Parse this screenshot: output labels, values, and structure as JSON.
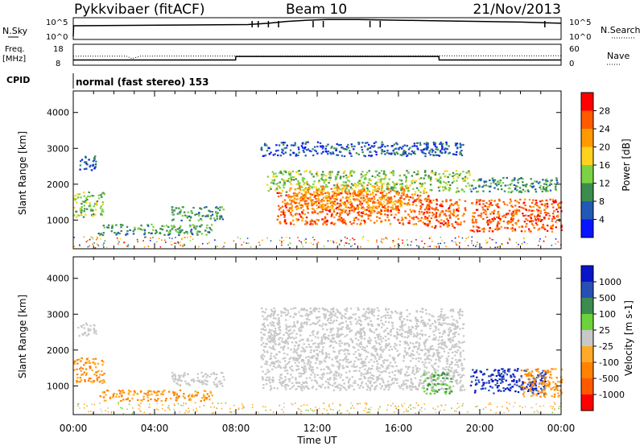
{
  "header": {
    "station": "Pykkvibaer (fitACF)",
    "beam": "Beam 10",
    "date": "21/Nov/2013"
  },
  "labels": {
    "nsky": "N.Sky",
    "nsearch": "N.Search",
    "freq": "Freq.",
    "mhz": "[MHz]",
    "nave": "Nave",
    "cpid": "CPID",
    "mode": "normal (fast stereo) 153",
    "time_axis": "Time UT"
  },
  "chart_data": [
    {
      "type": "line",
      "title": "N.Sky / N.Search",
      "ylabel_left": "N.Sky",
      "ylabel_right": "N.Search",
      "yticks_left": [
        "10^5",
        "10^0"
      ],
      "yticks_right": [
        "10^5",
        "10^0"
      ],
      "series": [
        {
          "name": "N.Sky",
          "style": "solid",
          "x": [
            0,
            0.02,
            8.6,
            9.6,
            10.5,
            11.5,
            12.5,
            14,
            16,
            18,
            20,
            22,
            24
          ],
          "y": [
            0.5,
            2.2,
            2.4,
            2.6,
            2.9,
            3.1,
            3.2,
            3.2,
            3.1,
            3.0,
            2.9,
            2.8,
            2.6
          ]
        },
        {
          "name": "N.Search",
          "style": "dotted",
          "x": [],
          "y": []
        }
      ],
      "spikes_x": [
        8.8,
        9.1,
        9.6,
        10.1,
        11.8,
        12.3,
        14.6,
        15.1,
        23.2
      ]
    },
    {
      "type": "line",
      "title": "Freq. [MHz] / Nave",
      "ylabel_left": "Freq. [MHz]",
      "ylabel_right": "Nave",
      "yticks_left": [
        "18",
        "8"
      ],
      "yticks_right": [
        "60",
        "0"
      ],
      "series": [
        {
          "name": "Freq.",
          "style": "solid",
          "units": "MHz",
          "x": [
            0,
            7.99,
            8.0,
            17.99,
            18.0,
            24
          ],
          "y": [
            10.5,
            10.5,
            12.2,
            12.2,
            10.5,
            10.5
          ]
        },
        {
          "name": "Nave",
          "style": "dotted",
          "x": [
            0,
            2.6,
            2.9,
            3.3,
            24
          ],
          "y": [
            26,
            26,
            19,
            26,
            27
          ]
        }
      ]
    },
    {
      "type": "heatmap",
      "title": "Power [dB]",
      "ylabel": "Slant Range [km]",
      "ylim": [
        200,
        4600
      ],
      "yticks": [
        1000,
        2000,
        3000,
        4000
      ],
      "xlim": [
        0,
        24
      ],
      "xticks": [
        "00:00",
        "04:00",
        "08:00",
        "12:00",
        "16:00",
        "20:00",
        "00:00"
      ],
      "colorbar": {
        "label": "Power [dB]",
        "ticks": [
          "28",
          "24",
          "20",
          "16",
          "12",
          "8",
          "4"
        ],
        "colors": [
          "#ff0000",
          "#ff5a00",
          "#ff9a00",
          "#ffd21e",
          "#7cd242",
          "#3c8c50",
          "#205ab4",
          "#0a14ff"
        ]
      },
      "blobs": [
        {
          "x": [
            0.0,
            1.5
          ],
          "r": [
            1100,
            1800
          ],
          "level": 4
        },
        {
          "x": [
            0.2,
            1.1
          ],
          "r": [
            2400,
            2800
          ],
          "level": 6
        },
        {
          "x": [
            1.2,
            6.8
          ],
          "r": [
            600,
            900
          ],
          "level": 5
        },
        {
          "x": [
            4.8,
            7.4
          ],
          "r": [
            1000,
            1400
          ],
          "level": 5
        },
        {
          "x": [
            9.2,
            19.2
          ],
          "r": [
            2800,
            3200
          ],
          "level": 6
        },
        {
          "x": [
            9.5,
            19.5
          ],
          "r": [
            1800,
            2400
          ],
          "level": 4
        },
        {
          "x": [
            10.0,
            17.5
          ],
          "r": [
            900,
            1800
          ],
          "level": 1
        },
        {
          "x": [
            10.5,
            16.5
          ],
          "r": [
            1300,
            2000
          ],
          "level": 2
        },
        {
          "x": [
            17.2,
            19.3
          ],
          "r": [
            800,
            1600
          ],
          "level": 1
        },
        {
          "x": [
            19.5,
            24.0
          ],
          "r": [
            700,
            1600
          ],
          "level": 1
        },
        {
          "x": [
            19.5,
            23.8
          ],
          "r": [
            1800,
            2200
          ],
          "level": 5
        }
      ]
    },
    {
      "type": "heatmap",
      "title": "Velocity [m s-1]",
      "ylabel": "Slant Range [km]",
      "ylim": [
        200,
        4600
      ],
      "yticks": [
        1000,
        2000,
        3000,
        4000
      ],
      "xlim": [
        0,
        24
      ],
      "xticks": [
        "00:00",
        "04:00",
        "08:00",
        "12:00",
        "16:00",
        "20:00",
        "00:00"
      ],
      "colorbar": {
        "label": "Velocity [m s-1]",
        "ticks": [
          "1000",
          "500",
          "100",
          "25",
          "-25",
          "-100",
          "-500",
          "-1000"
        ],
        "colors": [
          "#0a14c8",
          "#2850b4",
          "#3c8c50",
          "#6cd23c",
          "#c8c8c8",
          "#ffaa28",
          "#ff8200",
          "#ff5a00",
          "#ff0000"
        ]
      },
      "blobs": [
        {
          "x": [
            0.0,
            1.5
          ],
          "r": [
            1100,
            1800
          ],
          "level": "orange"
        },
        {
          "x": [
            0.2,
            1.1
          ],
          "r": [
            2400,
            2800
          ],
          "level": "grey"
        },
        {
          "x": [
            1.2,
            6.8
          ],
          "r": [
            600,
            900
          ],
          "level": "orange"
        },
        {
          "x": [
            4.8,
            7.4
          ],
          "r": [
            1000,
            1400
          ],
          "level": "grey"
        },
        {
          "x": [
            9.2,
            19.2
          ],
          "r": [
            900,
            3200
          ],
          "level": "grey"
        },
        {
          "x": [
            17.2,
            18.6
          ],
          "r": [
            800,
            1400
          ],
          "level": "green"
        },
        {
          "x": [
            19.5,
            23.2
          ],
          "r": [
            800,
            1500
          ],
          "level": "blue"
        },
        {
          "x": [
            22.0,
            24.0
          ],
          "r": [
            700,
            1500
          ],
          "level": "orange"
        }
      ]
    }
  ]
}
